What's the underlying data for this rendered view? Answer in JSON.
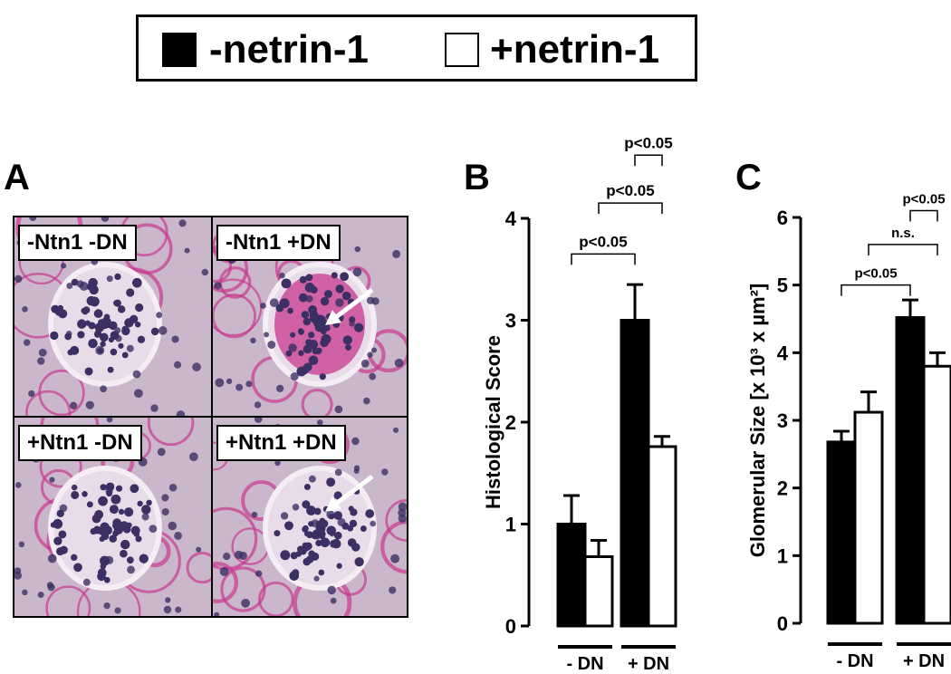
{
  "legend": {
    "items": [
      {
        "label": "-netrin-1",
        "fill": "#000000"
      },
      {
        "label": "+netrin-1",
        "fill": "#ffffff"
      }
    ]
  },
  "panel_labels": {
    "a": "A",
    "b": "B",
    "c": "C"
  },
  "micrographs": [
    {
      "label": "-Ntn1 -DN",
      "arrow": false
    },
    {
      "label": "-Ntn1 +DN",
      "arrow": true
    },
    {
      "label": "+Ntn1 -DN",
      "arrow": false
    },
    {
      "label": "+Ntn1 +DN",
      "arrow": true
    }
  ],
  "colors": {
    "tissue_bg": "#cbb7cc",
    "magenta": "#c8388e",
    "nuclei": "#3b2f63",
    "bar_dark": "#000000",
    "bar_light": "#ffffff"
  },
  "chart_data": [
    {
      "type": "bar",
      "ylabel": "Histological Score",
      "ylim": [
        0,
        4
      ],
      "yticks": [
        0,
        1,
        2,
        3,
        4
      ],
      "groups": [
        "- DN",
        "+ DN"
      ],
      "series": [
        {
          "name": "-netrin-1",
          "values": [
            1.0,
            3.0
          ],
          "errors": [
            0.28,
            0.35
          ]
        },
        {
          "name": "+netrin-1",
          "values": [
            0.68,
            1.76
          ],
          "errors": [
            0.16,
            0.1
          ]
        }
      ],
      "comparisons": [
        {
          "label": "p<0.05",
          "from": [
            0,
            0
          ],
          "to": [
            1,
            0
          ],
          "y": 3.65
        },
        {
          "label": "p<0.05",
          "from": [
            0,
            1
          ],
          "to": [
            1,
            1
          ],
          "y": 4.15
        },
        {
          "label": "p<0.05",
          "from": [
            1,
            0
          ],
          "to": [
            1,
            1
          ],
          "y": 4.62
        }
      ]
    },
    {
      "type": "bar",
      "ylabel": "Glomerular Size [x 10³ x µm²]",
      "ylim": [
        0,
        6
      ],
      "yticks": [
        0,
        1,
        2,
        3,
        4,
        5,
        6
      ],
      "groups": [
        "- DN",
        "+ DN"
      ],
      "series": [
        {
          "name": "-netrin-1",
          "values": [
            2.68,
            4.52
          ],
          "errors": [
            0.16,
            0.26
          ]
        },
        {
          "name": "+netrin-1",
          "values": [
            3.12,
            3.8
          ],
          "errors": [
            0.3,
            0.2
          ]
        }
      ],
      "comparisons": [
        {
          "label": "p<0.05",
          "from": [
            0,
            0
          ],
          "to": [
            1,
            0
          ],
          "y": 5.0
        },
        {
          "label": "n.s.",
          "from": [
            0,
            1
          ],
          "to": [
            1,
            1
          ],
          "y": 5.6
        },
        {
          "label": "p<0.05",
          "from": [
            1,
            0
          ],
          "to": [
            1,
            1
          ],
          "y": 6.1
        }
      ]
    }
  ]
}
